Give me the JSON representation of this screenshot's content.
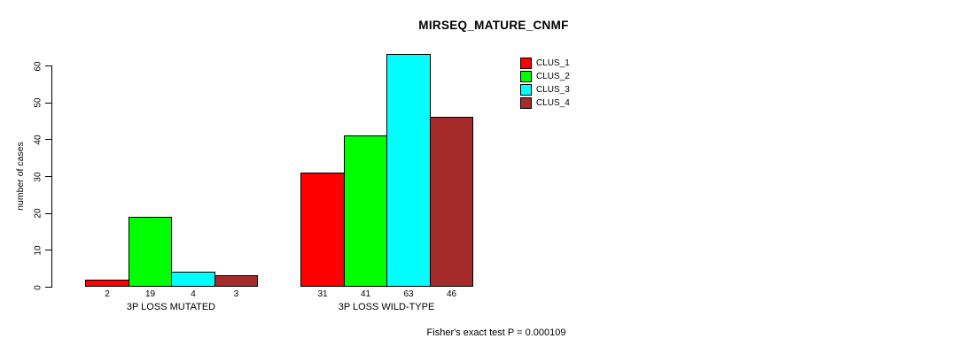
{
  "title": "MIRSEQ_MATURE_CNMF",
  "chart_data": {
    "type": "bar",
    "title": "MIRSEQ_MATURE_CNMF",
    "xlabel": "",
    "ylabel": "number of cases",
    "categories": [
      "3P LOSS MUTATED",
      "3P LOSS WILD-TYPE"
    ],
    "series": [
      {
        "name": "CLUS_1",
        "color": "#ff0000",
        "values": [
          2,
          31
        ]
      },
      {
        "name": "CLUS_2",
        "color": "#00ff00",
        "values": [
          19,
          41
        ]
      },
      {
        "name": "CLUS_3",
        "color": "#00ffff",
        "values": [
          4,
          63
        ]
      },
      {
        "name": "CLUS_4",
        "color": "#a52a2a",
        "values": [
          3,
          46
        ]
      }
    ],
    "ylim": [
      0,
      60
    ],
    "yticks": [
      0,
      10,
      20,
      30,
      40,
      50,
      60
    ],
    "grid": false,
    "legend_position": "top-right",
    "value_labels_shown": true,
    "annotation": "Fisher's exact test P = 0.000109"
  },
  "colors": {
    "background": "#ffffff",
    "axis": "#000000",
    "text": "#000000"
  }
}
